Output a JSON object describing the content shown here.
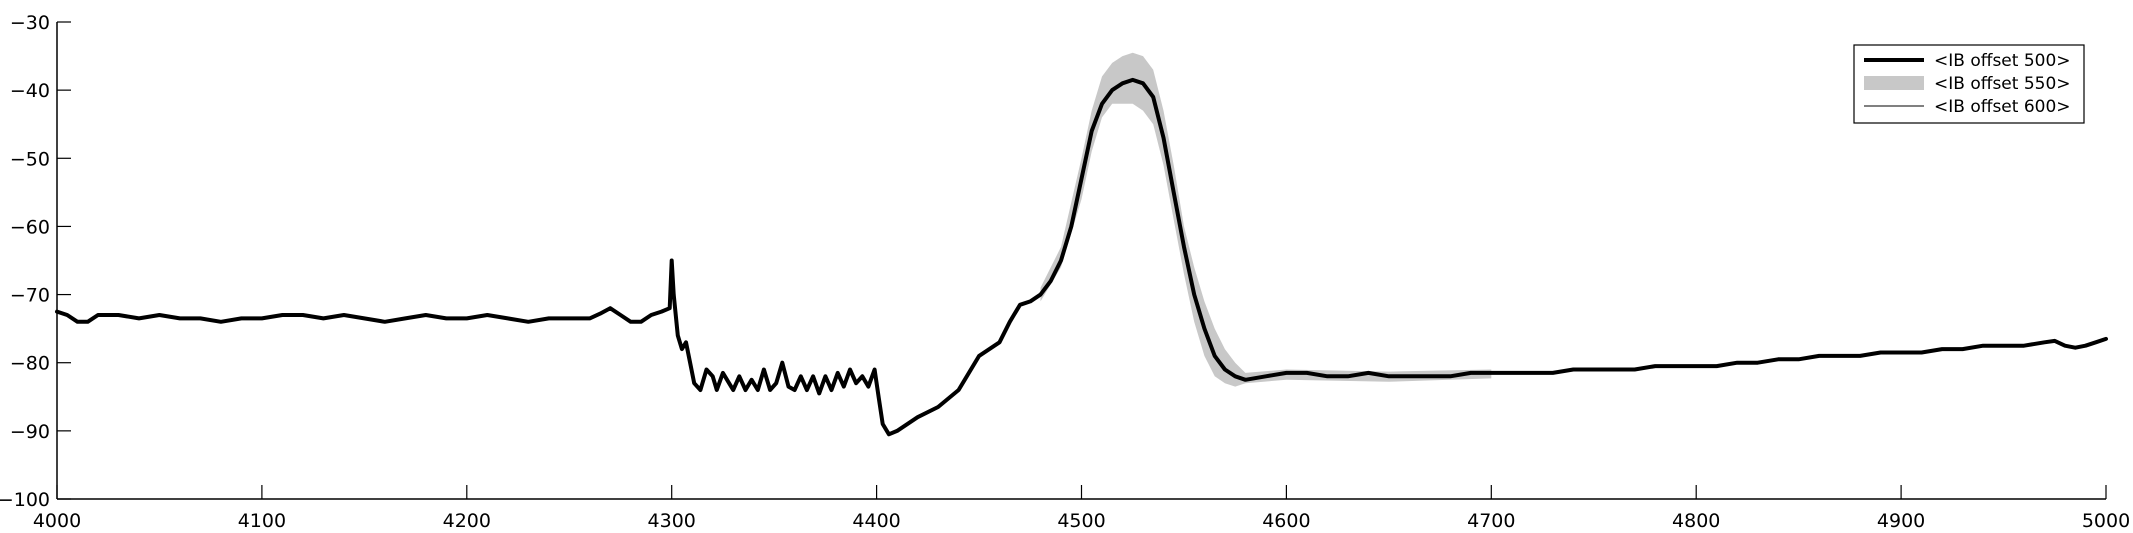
{
  "chart_data": {
    "type": "line",
    "title": "",
    "xlabel": "",
    "ylabel": "",
    "xlim": [
      4000,
      5000
    ],
    "ylim": [
      -100,
      -30
    ],
    "xticks": [
      4000,
      4100,
      4200,
      4300,
      4400,
      4500,
      4600,
      4700,
      4800,
      4900,
      5000
    ],
    "yticks": [
      -100,
      -90,
      -80,
      -70,
      -60,
      -50,
      -40,
      -30
    ],
    "xtick_labels": [
      "4000",
      "4100",
      "4200",
      "4300",
      "4400",
      "4500",
      "4600",
      "4700",
      "4800",
      "4900",
      "5000"
    ],
    "ytick_labels": [
      "−100",
      "−90",
      "−80",
      "−70",
      "−60",
      "−50",
      "−40",
      "−30"
    ],
    "grid": false,
    "legend": {
      "placement": "top-right",
      "entries": [
        {
          "label": "<IB offset 500>",
          "style": "thick-line",
          "color": "#000000"
        },
        {
          "label": "<IB offset 550>",
          "style": "band",
          "color": "#c8c8c8"
        },
        {
          "label": "<IB offset 600>",
          "style": "thin-line",
          "color": "#000000"
        }
      ]
    },
    "series": [
      {
        "name": "<IB offset 500>",
        "color": "#000000",
        "points": [
          [
            4000,
            -72.5
          ],
          [
            4005,
            -73
          ],
          [
            4010,
            -74
          ],
          [
            4015,
            -74
          ],
          [
            4020,
            -73
          ],
          [
            4030,
            -73
          ],
          [
            4040,
            -73.5
          ],
          [
            4050,
            -73
          ],
          [
            4060,
            -73.5
          ],
          [
            4070,
            -73.5
          ],
          [
            4080,
            -74
          ],
          [
            4090,
            -73.5
          ],
          [
            4100,
            -73.5
          ],
          [
            4110,
            -73
          ],
          [
            4120,
            -73
          ],
          [
            4130,
            -73.5
          ],
          [
            4140,
            -73
          ],
          [
            4150,
            -73.5
          ],
          [
            4160,
            -74
          ],
          [
            4170,
            -73.5
          ],
          [
            4180,
            -73
          ],
          [
            4190,
            -73.5
          ],
          [
            4200,
            -73.5
          ],
          [
            4210,
            -73
          ],
          [
            4220,
            -73.5
          ],
          [
            4230,
            -74
          ],
          [
            4240,
            -73.5
          ],
          [
            4250,
            -73.5
          ],
          [
            4260,
            -73.5
          ],
          [
            4265,
            -72.8
          ],
          [
            4270,
            -72
          ],
          [
            4275,
            -73
          ],
          [
            4280,
            -74
          ],
          [
            4285,
            -74
          ],
          [
            4290,
            -73
          ],
          [
            4295,
            -72.5
          ],
          [
            4299,
            -72
          ],
          [
            4300,
            -65
          ],
          [
            4301,
            -70
          ],
          [
            4303,
            -76
          ],
          [
            4305,
            -78
          ],
          [
            4307,
            -77
          ],
          [
            4309,
            -80
          ],
          [
            4311,
            -83
          ],
          [
            4314,
            -84
          ],
          [
            4317,
            -81
          ],
          [
            4320,
            -82
          ],
          [
            4322,
            -84
          ],
          [
            4325,
            -81.5
          ],
          [
            4328,
            -83
          ],
          [
            4330,
            -84
          ],
          [
            4333,
            -82
          ],
          [
            4336,
            -84
          ],
          [
            4339,
            -82.5
          ],
          [
            4342,
            -84
          ],
          [
            4345,
            -81
          ],
          [
            4348,
            -84
          ],
          [
            4351,
            -83
          ],
          [
            4354,
            -80
          ],
          [
            4357,
            -83.5
          ],
          [
            4360,
            -84
          ],
          [
            4363,
            -82
          ],
          [
            4366,
            -84
          ],
          [
            4369,
            -82
          ],
          [
            4372,
            -84.5
          ],
          [
            4375,
            -82
          ],
          [
            4378,
            -84
          ],
          [
            4381,
            -81.5
          ],
          [
            4384,
            -83.5
          ],
          [
            4387,
            -81
          ],
          [
            4390,
            -83
          ],
          [
            4393,
            -82
          ],
          [
            4396,
            -83.5
          ],
          [
            4399,
            -81
          ],
          [
            4401,
            -85
          ],
          [
            4403,
            -89
          ],
          [
            4406,
            -90.5
          ],
          [
            4410,
            -90
          ],
          [
            4420,
            -88
          ],
          [
            4430,
            -86.5
          ],
          [
            4440,
            -84
          ],
          [
            4450,
            -79
          ],
          [
            4460,
            -77
          ],
          [
            4465,
            -74
          ],
          [
            4470,
            -71.5
          ],
          [
            4475,
            -71
          ],
          [
            4480,
            -70
          ],
          [
            4485,
            -68
          ],
          [
            4490,
            -65
          ],
          [
            4495,
            -60
          ],
          [
            4500,
            -53
          ],
          [
            4505,
            -46
          ],
          [
            4510,
            -42
          ],
          [
            4515,
            -40
          ],
          [
            4520,
            -39
          ],
          [
            4525,
            -38.5
          ],
          [
            4530,
            -39
          ],
          [
            4535,
            -41
          ],
          [
            4540,
            -47
          ],
          [
            4545,
            -55
          ],
          [
            4550,
            -63
          ],
          [
            4555,
            -70
          ],
          [
            4560,
            -75
          ],
          [
            4565,
            -79
          ],
          [
            4570,
            -81
          ],
          [
            4575,
            -82
          ],
          [
            4580,
            -82.5
          ],
          [
            4590,
            -82
          ],
          [
            4600,
            -81.5
          ],
          [
            4610,
            -81.5
          ],
          [
            4620,
            -82
          ],
          [
            4630,
            -82
          ],
          [
            4640,
            -81.5
          ],
          [
            4650,
            -82
          ],
          [
            4660,
            -82
          ],
          [
            4670,
            -82
          ],
          [
            4680,
            -82
          ],
          [
            4690,
            -81.5
          ],
          [
            4700,
            -81.5
          ],
          [
            4710,
            -81.5
          ],
          [
            4720,
            -81.5
          ],
          [
            4730,
            -81.5
          ],
          [
            4740,
            -81
          ],
          [
            4750,
            -81
          ],
          [
            4760,
            -81
          ],
          [
            4770,
            -81
          ],
          [
            4780,
            -80.5
          ],
          [
            4790,
            -80.5
          ],
          [
            4800,
            -80.5
          ],
          [
            4810,
            -80.5
          ],
          [
            4820,
            -80
          ],
          [
            4830,
            -80
          ],
          [
            4840,
            -79.5
          ],
          [
            4850,
            -79.5
          ],
          [
            4860,
            -79
          ],
          [
            4870,
            -79
          ],
          [
            4880,
            -79
          ],
          [
            4890,
            -78.5
          ],
          [
            4900,
            -78.5
          ],
          [
            4910,
            -78.5
          ],
          [
            4920,
            -78
          ],
          [
            4930,
            -78
          ],
          [
            4940,
            -77.5
          ],
          [
            4950,
            -77.5
          ],
          [
            4960,
            -77.5
          ],
          [
            4970,
            -77
          ],
          [
            4975,
            -76.8
          ],
          [
            4980,
            -77.5
          ],
          [
            4985,
            -77.8
          ],
          [
            4990,
            -77.5
          ],
          [
            4995,
            -77
          ],
          [
            5000,
            -76.5
          ]
        ]
      },
      {
        "name": "<IB offset 550>",
        "color": "#c8c8c8",
        "band": [
          [
            4480,
            -69,
            -71
          ],
          [
            4490,
            -63,
            -66
          ],
          [
            4500,
            -50,
            -56
          ],
          [
            4505,
            -43,
            -49
          ],
          [
            4510,
            -38,
            -44
          ],
          [
            4515,
            -36,
            -42
          ],
          [
            4520,
            -35,
            -42
          ],
          [
            4525,
            -34.5,
            -42
          ],
          [
            4530,
            -35,
            -43
          ],
          [
            4535,
            -37,
            -45
          ],
          [
            4540,
            -43,
            -51
          ],
          [
            4545,
            -51,
            -59
          ],
          [
            4550,
            -60,
            -67
          ],
          [
            4555,
            -66,
            -74
          ],
          [
            4560,
            -71,
            -79
          ],
          [
            4565,
            -75,
            -82
          ],
          [
            4570,
            -78,
            -83
          ],
          [
            4575,
            -80,
            -83.5
          ],
          [
            4580,
            -81.5,
            -83
          ],
          [
            4600,
            -81,
            -82.5
          ],
          [
            4650,
            -81.3,
            -82.8
          ],
          [
            4700,
            -81,
            -82.3
          ]
        ]
      }
    ]
  }
}
